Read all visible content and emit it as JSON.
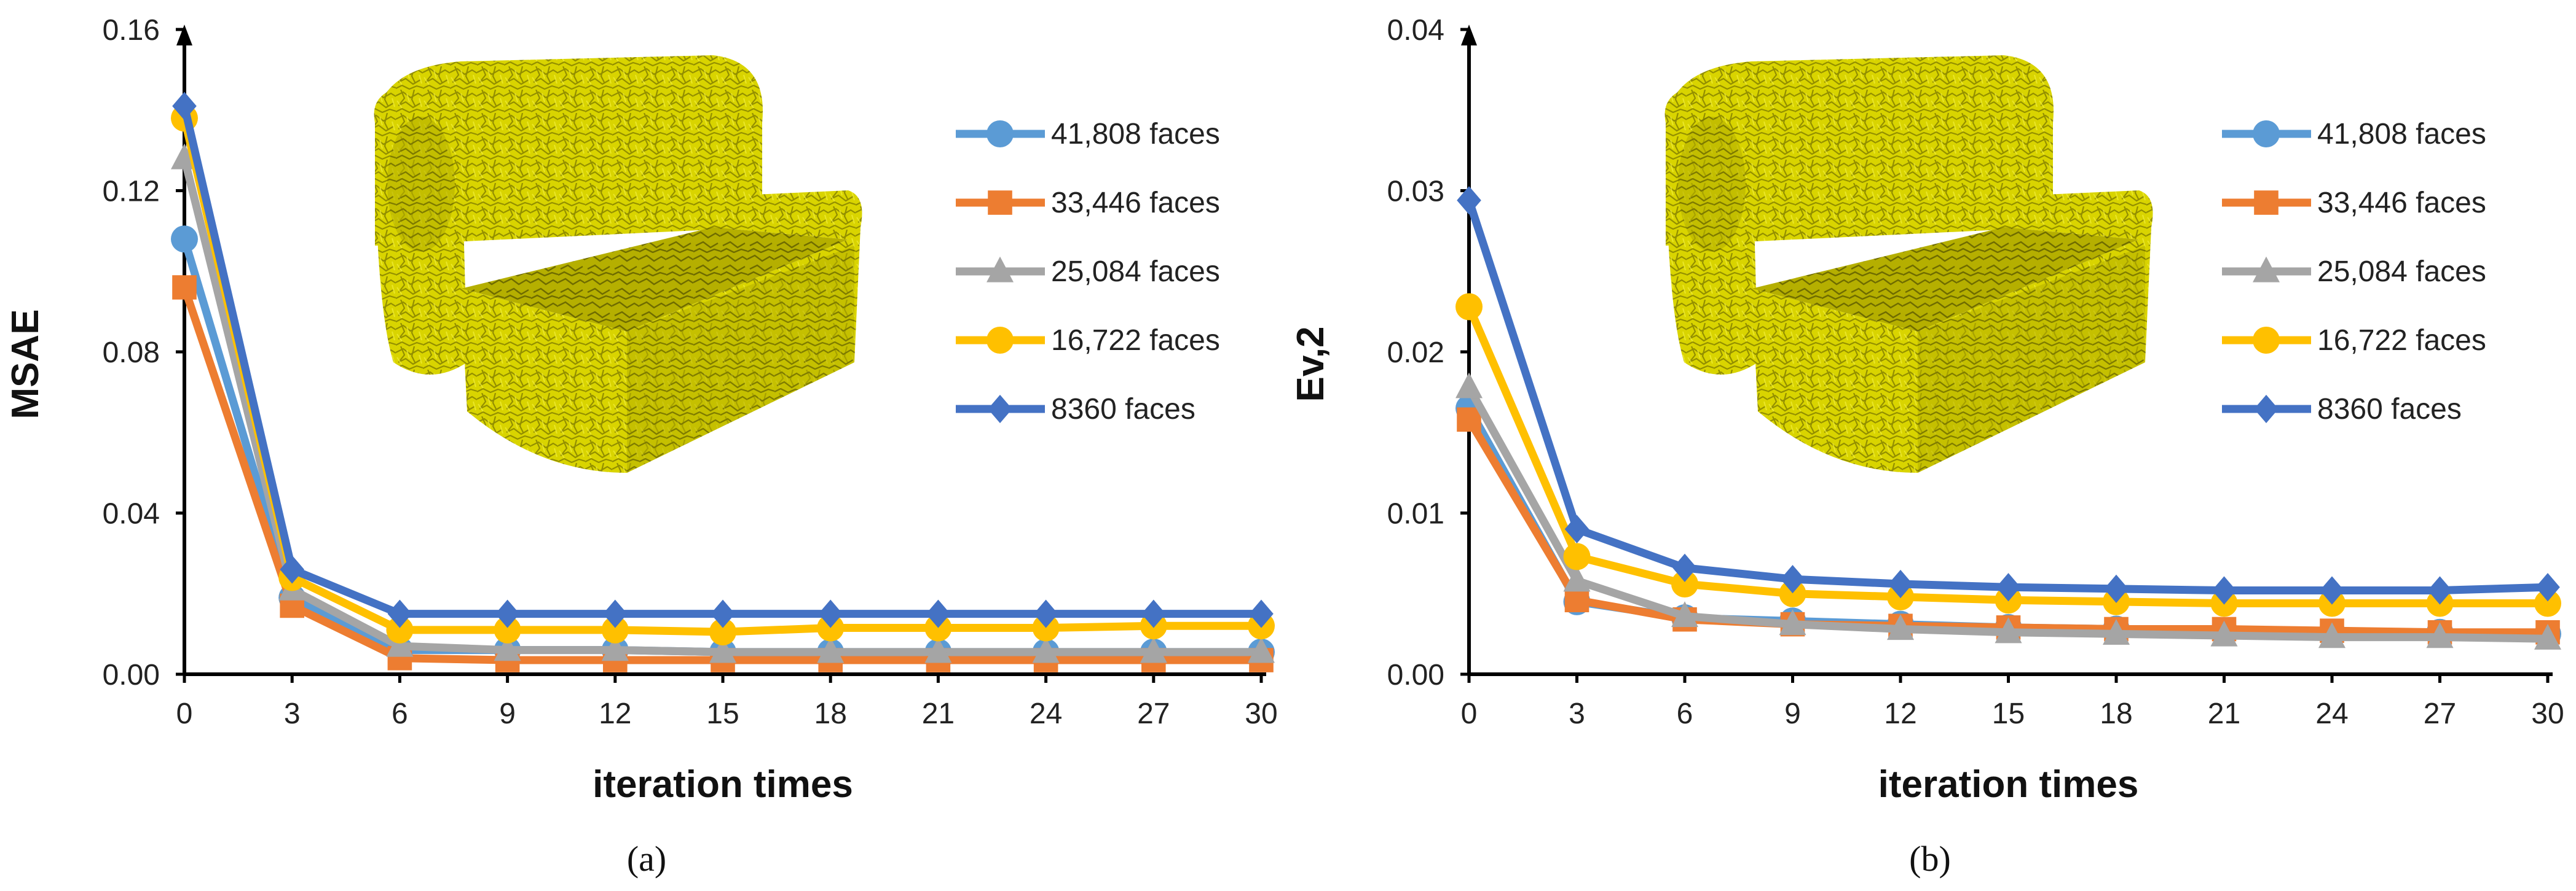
{
  "chart_data": [
    {
      "type": "line",
      "panel_caption": "(a)",
      "xlabel": "iteration times",
      "ylabel": "MSAE",
      "x": [
        0,
        3,
        6,
        9,
        12,
        15,
        18,
        21,
        24,
        27,
        30
      ],
      "ylim": [
        0,
        0.16
      ],
      "yticks": [
        "0.00",
        "0.04",
        "0.08",
        "0.12",
        "0.16"
      ],
      "xticks": [
        "0",
        "3",
        "6",
        "9",
        "12",
        "15",
        "18",
        "21",
        "24",
        "27",
        "30"
      ],
      "legend_position": "top-right",
      "inset_image": "yellow-sofa-mesh",
      "series": [
        {
          "name": "41,808 faces",
          "color": "#5B9BD5",
          "marker": "circle",
          "values": [
            0.108,
            0.019,
            0.006,
            0.006,
            0.006,
            0.0055,
            0.0055,
            0.0055,
            0.0055,
            0.0055,
            0.0055
          ]
        },
        {
          "name": "33,446 faces",
          "color": "#ED7D31",
          "marker": "square",
          "values": [
            0.096,
            0.017,
            0.004,
            0.0035,
            0.0035,
            0.0035,
            0.0035,
            0.0035,
            0.0035,
            0.0035,
            0.0035
          ]
        },
        {
          "name": "25,084 faces",
          "color": "#A5A5A5",
          "marker": "triangle",
          "values": [
            0.128,
            0.021,
            0.007,
            0.006,
            0.006,
            0.0055,
            0.0055,
            0.0055,
            0.0055,
            0.0055,
            0.0055
          ]
        },
        {
          "name": "16,722 faces",
          "color": "#FFC000",
          "marker": "circle",
          "values": [
            0.138,
            0.024,
            0.011,
            0.011,
            0.011,
            0.0105,
            0.0115,
            0.0115,
            0.0115,
            0.012,
            0.012
          ]
        },
        {
          "name": "8360 faces",
          "color": "#4472C4",
          "marker": "diamond",
          "values": [
            0.141,
            0.026,
            0.015,
            0.015,
            0.015,
            0.015,
            0.015,
            0.015,
            0.015,
            0.015,
            0.015
          ]
        }
      ]
    },
    {
      "type": "line",
      "panel_caption": "(b)",
      "xlabel": "iteration times",
      "ylabel": "Ev,2",
      "x": [
        0,
        3,
        6,
        9,
        12,
        15,
        18,
        21,
        24,
        27,
        30
      ],
      "ylim": [
        0,
        0.04
      ],
      "yticks": [
        "0.00",
        "0.01",
        "0.02",
        "0.03",
        "0.04"
      ],
      "xticks": [
        "0",
        "3",
        "6",
        "9",
        "12",
        "15",
        "18",
        "21",
        "24",
        "27",
        "30"
      ],
      "legend_position": "top-right",
      "inset_image": "yellow-sofa-mesh",
      "series": [
        {
          "name": "41,808 faces",
          "color": "#5B9BD5",
          "marker": "circle",
          "values": [
            0.0165,
            0.0045,
            0.0035,
            0.0033,
            0.0031,
            0.0029,
            0.0028,
            0.0027,
            0.0026,
            0.0026,
            0.0025
          ]
        },
        {
          "name": "33,446 faces",
          "color": "#ED7D31",
          "marker": "square",
          "values": [
            0.0158,
            0.0046,
            0.0034,
            0.0031,
            0.003,
            0.0029,
            0.0028,
            0.0028,
            0.0027,
            0.0026,
            0.0026
          ]
        },
        {
          "name": "25,084 faces",
          "color": "#A5A5A5",
          "marker": "triangle",
          "values": [
            0.0178,
            0.0058,
            0.0036,
            0.0031,
            0.0028,
            0.0026,
            0.0025,
            0.0024,
            0.0023,
            0.0023,
            0.0022
          ]
        },
        {
          "name": "16,722 faces",
          "color": "#FFC000",
          "marker": "circle",
          "values": [
            0.0228,
            0.0073,
            0.0056,
            0.005,
            0.0048,
            0.0046,
            0.0045,
            0.0044,
            0.0044,
            0.0044,
            0.0044
          ]
        },
        {
          "name": "8360 faces",
          "color": "#4472C4",
          "marker": "diamond",
          "values": [
            0.0294,
            0.009,
            0.0066,
            0.0059,
            0.0056,
            0.0054,
            0.0053,
            0.0052,
            0.0052,
            0.0052,
            0.0054
          ]
        }
      ]
    }
  ]
}
